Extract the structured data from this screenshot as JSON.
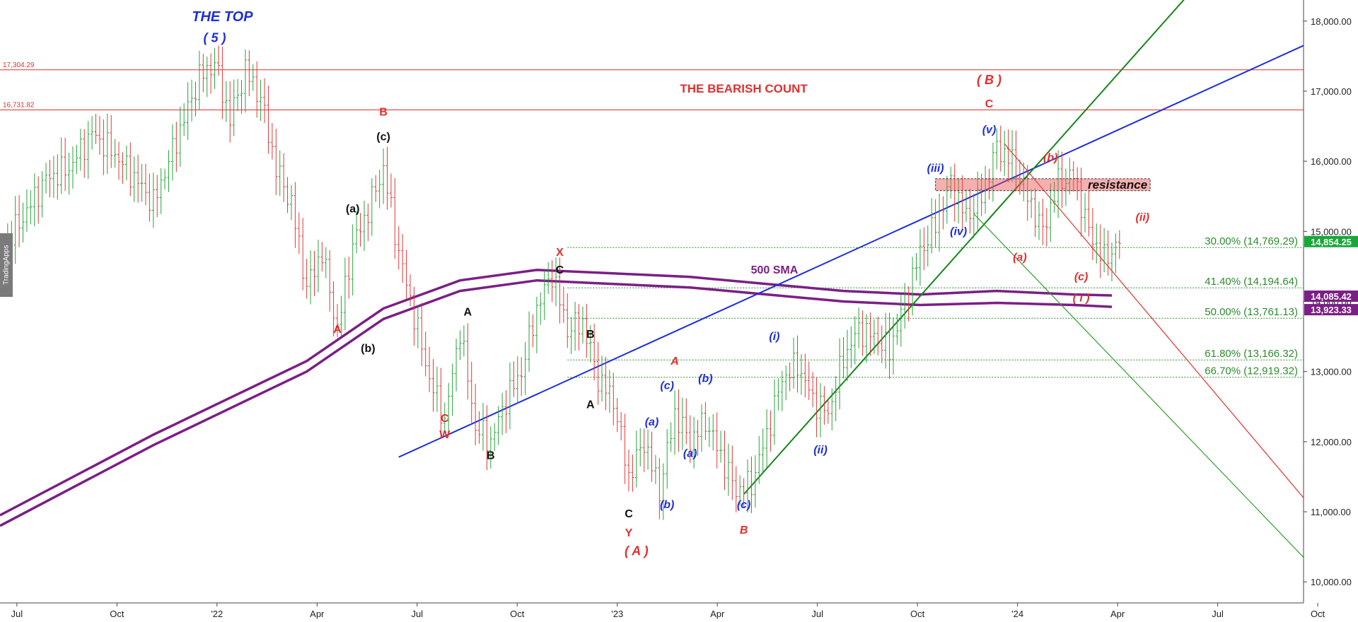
{
  "chart_data": {
    "type": "candlestick",
    "x_axis": {
      "range": [
        "2021-06",
        "2024-12"
      ],
      "tick_labels": [
        "Jul",
        "Oct",
        "'22",
        "Apr",
        "Jul",
        "Oct",
        "'23",
        "Apr",
        "Jul",
        "Oct",
        "'24",
        "Apr",
        "Jul",
        "Oct"
      ]
    },
    "y_axis": {
      "range": [
        9700,
        18300
      ],
      "position": "right",
      "tick_values": [
        10000,
        11000,
        12000,
        13000,
        14000,
        15000,
        16000,
        17000,
        18000
      ],
      "tick_labels": [
        "10,000.00",
        "11,000.00",
        "12,000.00",
        "13,000.00",
        "14,000.00",
        "15,000.00",
        "16,000.00",
        "17,000.00",
        "18,000.00"
      ]
    },
    "price_path": [
      [
        0,
        14700
      ],
      [
        3,
        15200
      ],
      [
        6,
        15750
      ],
      [
        9,
        15900
      ],
      [
        12,
        16400
      ],
      [
        15,
        16100
      ],
      [
        18,
        15700
      ],
      [
        20,
        15400
      ],
      [
        22,
        16000
      ],
      [
        24,
        16600
      ],
      [
        26,
        17200
      ],
      [
        28,
        17400
      ],
      [
        30,
        16600
      ],
      [
        32,
        17300
      ],
      [
        34,
        16900
      ],
      [
        36,
        15900
      ],
      [
        38,
        15400
      ],
      [
        40,
        14200
      ],
      [
        42,
        14700
      ],
      [
        44,
        13600
      ],
      [
        46,
        14800
      ],
      [
        48,
        15300
      ],
      [
        50,
        15900
      ],
      [
        52,
        14700
      ],
      [
        54,
        13800
      ],
      [
        56,
        12900
      ],
      [
        58,
        12300
      ],
      [
        60,
        13600
      ],
      [
        62,
        12200
      ],
      [
        64,
        12000
      ],
      [
        66,
        12600
      ],
      [
        68,
        13000
      ],
      [
        70,
        13900
      ],
      [
        72,
        14400
      ],
      [
        74,
        13600
      ],
      [
        76,
        13700
      ],
      [
        78,
        12900
      ],
      [
        80,
        12600
      ],
      [
        82,
        11500
      ],
      [
        84,
        12000
      ],
      [
        86,
        11300
      ],
      [
        88,
        12400
      ],
      [
        90,
        12000
      ],
      [
        92,
        12300
      ],
      [
        94,
        11800
      ],
      [
        96,
        11300
      ],
      [
        98,
        11400
      ],
      [
        100,
        12100
      ],
      [
        102,
        12900
      ],
      [
        104,
        13100
      ],
      [
        106,
        12600
      ],
      [
        108,
        12400
      ],
      [
        110,
        13200
      ],
      [
        112,
        13600
      ],
      [
        114,
        13500
      ],
      [
        116,
        13300
      ],
      [
        118,
        14000
      ],
      [
        120,
        14700
      ],
      [
        122,
        15100
      ],
      [
        124,
        15700
      ],
      [
        126,
        15200
      ],
      [
        128,
        15500
      ],
      [
        130,
        16200
      ],
      [
        132,
        16000
      ],
      [
        134,
        15500
      ],
      [
        136,
        15000
      ],
      [
        138,
        15700
      ],
      [
        140,
        15800
      ],
      [
        142,
        15000
      ],
      [
        144,
        14600
      ],
      [
        146,
        14850
      ]
    ],
    "sma": {
      "label": "500 SMA",
      "color": "#7b1f86",
      "upper": [
        [
          0,
          10950
        ],
        [
          20,
          12100
        ],
        [
          40,
          13150
        ],
        [
          50,
          13900
        ],
        [
          60,
          14300
        ],
        [
          70,
          14450
        ],
        [
          80,
          14400
        ],
        [
          90,
          14350
        ],
        [
          100,
          14250
        ],
        [
          110,
          14150
        ],
        [
          120,
          14100
        ],
        [
          130,
          14150
        ],
        [
          140,
          14100
        ],
        [
          145,
          14085.42
        ]
      ],
      "lower": [
        [
          0,
          10800
        ],
        [
          20,
          11950
        ],
        [
          40,
          13000
        ],
        [
          50,
          13750
        ],
        [
          60,
          14150
        ],
        [
          70,
          14300
        ],
        [
          80,
          14250
        ],
        [
          90,
          14200
        ],
        [
          100,
          14100
        ],
        [
          110,
          14000
        ],
        [
          120,
          13950
        ],
        [
          130,
          13980
        ],
        [
          140,
          13950
        ],
        [
          145,
          13923.33
        ]
      ]
    },
    "horizontal_levels": [
      {
        "value": 17304.29,
        "label": "17,304.29",
        "color": "#e03030"
      },
      {
        "value": 16731.82,
        "label": "16,731.82",
        "color": "#e03030"
      }
    ],
    "fib_levels": [
      {
        "value": 14769.29,
        "label": "30.00% (14,769.29)"
      },
      {
        "value": 14194.64,
        "label": "41.40% (14,194.64)"
      },
      {
        "value": 13761.13,
        "label": "50.00% (13,761.13)"
      },
      {
        "value": 13166.32,
        "label": "61.80% (13,166.32)"
      },
      {
        "value": 12919.32,
        "label": "66.70% (12,919.32)"
      }
    ],
    "trendlines": [
      {
        "name": "blue",
        "color": "#1f2fd6",
        "from": [
          52,
          11780
        ],
        "to": [
          170,
          17650
        ]
      },
      {
        "name": "green",
        "color": "#14861a",
        "from": [
          97,
          11250
        ],
        "to": [
          156,
          18500
        ]
      },
      {
        "name": "red",
        "color": "#e03030",
        "from": [
          131,
          16250
        ],
        "to": [
          170,
          11200
        ]
      },
      {
        "name": "green-thin",
        "color": "#2e9e2e",
        "from": [
          127,
          15250
        ],
        "to": [
          170,
          10350
        ]
      }
    ],
    "resistance_zone": {
      "label": "resistance",
      "top": 15750,
      "bottom": 15580,
      "start": 122,
      "end": 150
    },
    "price_badges": [
      {
        "value": "14,854.25",
        "color": "#18a838"
      },
      {
        "value": "14,085.42",
        "color": "#7b1f86"
      },
      {
        "value": "13,923.33",
        "color": "#7b1f86"
      }
    ],
    "annotations": [
      {
        "text": "THE TOP",
        "x": 29,
        "y": 18000,
        "color": "#1f2fd6",
        "italic": true,
        "size": 20
      },
      {
        "text": "( 5 )",
        "x": 28,
        "y": 17700,
        "color": "#1f2fd6",
        "italic": true,
        "size": 18
      },
      {
        "text": "THE BEARISH COUNT",
        "x": 97,
        "y": 16980,
        "color": "#e03030",
        "italic": false,
        "size": 17
      },
      {
        "text": "B",
        "x": 50,
        "y": 16650,
        "color": "#e03030",
        "italic": false,
        "size": 16
      },
      {
        "text": "(c)",
        "x": 50,
        "y": 16300,
        "color": "#111111",
        "italic": false,
        "size": 16
      },
      {
        "text": "(a)",
        "x": 46,
        "y": 15270,
        "color": "#111111",
        "italic": false,
        "size": 16
      },
      {
        "text": "A",
        "x": 44,
        "y": 13550,
        "color": "#e03030",
        "italic": false,
        "size": 16
      },
      {
        "text": "(b)",
        "x": 48,
        "y": 13280,
        "color": "#111111",
        "italic": false,
        "size": 16
      },
      {
        "text": "C",
        "x": 58,
        "y": 12280,
        "color": "#e03030",
        "italic": false,
        "size": 16
      },
      {
        "text": "W",
        "x": 58,
        "y": 12050,
        "color": "#e03030",
        "italic": false,
        "size": 16
      },
      {
        "text": "B",
        "x": 64,
        "y": 11750,
        "color": "#111111",
        "italic": false,
        "size": 16
      },
      {
        "text": "A",
        "x": 61,
        "y": 13800,
        "color": "#111111",
        "italic": false,
        "size": 16
      },
      {
        "text": "X",
        "x": 73,
        "y": 14650,
        "color": "#e03030",
        "italic": false,
        "size": 16
      },
      {
        "text": "C",
        "x": 73,
        "y": 14400,
        "color": "#111111",
        "italic": false,
        "size": 16
      },
      {
        "text": "500 SMA",
        "x": 101,
        "y": 14400,
        "color": "#7b1f86",
        "italic": false,
        "size": 16
      },
      {
        "text": "B",
        "x": 77,
        "y": 13480,
        "color": "#111111",
        "italic": false,
        "size": 16
      },
      {
        "text": "A",
        "x": 77,
        "y": 12480,
        "color": "#111111",
        "italic": false,
        "size": 16
      },
      {
        "text": "A",
        "x": 88,
        "y": 13100,
        "color": "#e03030",
        "italic": true,
        "size": 16
      },
      {
        "text": "(c)",
        "x": 87,
        "y": 12750,
        "color": "#1f2fd6",
        "italic": true,
        "size": 16
      },
      {
        "text": "(b)",
        "x": 92,
        "y": 12850,
        "color": "#1f2fd6",
        "italic": true,
        "size": 16
      },
      {
        "text": "(a)",
        "x": 85,
        "y": 12230,
        "color": "#1f2fd6",
        "italic": true,
        "size": 16
      },
      {
        "text": "(a)",
        "x": 90,
        "y": 11780,
        "color": "#1f2fd6",
        "italic": true,
        "size": 16
      },
      {
        "text": "(b)",
        "x": 87,
        "y": 11050,
        "color": "#1f2fd6",
        "italic": true,
        "size": 16
      },
      {
        "text": "C",
        "x": 82,
        "y": 10920,
        "color": "#111111",
        "italic": false,
        "size": 16
      },
      {
        "text": "Y",
        "x": 82,
        "y": 10650,
        "color": "#e03030",
        "italic": false,
        "size": 16
      },
      {
        "text": "( A )",
        "x": 83,
        "y": 10380,
        "color": "#e03030",
        "italic": true,
        "size": 18
      },
      {
        "text": "(c)",
        "x": 97,
        "y": 11050,
        "color": "#1f2fd6",
        "italic": true,
        "size": 16
      },
      {
        "text": "B",
        "x": 97,
        "y": 10690,
        "color": "#e03030",
        "italic": true,
        "size": 16
      },
      {
        "text": "(i)",
        "x": 101,
        "y": 13450,
        "color": "#1f2fd6",
        "italic": true,
        "size": 16
      },
      {
        "text": "(ii)",
        "x": 107,
        "y": 11830,
        "color": "#1f2fd6",
        "italic": true,
        "size": 16
      },
      {
        "text": "(iii)",
        "x": 122,
        "y": 15850,
        "color": "#1f2fd6",
        "italic": true,
        "size": 16
      },
      {
        "text": "(iv)",
        "x": 125,
        "y": 14950,
        "color": "#1f2fd6",
        "italic": true,
        "size": 16
      },
      {
        "text": "(v)",
        "x": 129,
        "y": 16400,
        "color": "#1f2fd6",
        "italic": true,
        "size": 16
      },
      {
        "text": "( B )",
        "x": 129,
        "y": 17100,
        "color": "#e03030",
        "italic": true,
        "size": 18
      },
      {
        "text": "C",
        "x": 129,
        "y": 16770,
        "color": "#e03030",
        "italic": false,
        "size": 16
      },
      {
        "text": "(b)",
        "x": 137,
        "y": 16000,
        "color": "#e03030",
        "italic": true,
        "size": 16
      },
      {
        "text": "(ii)",
        "x": 149,
        "y": 15150,
        "color": "#e03030",
        "italic": true,
        "size": 16
      },
      {
        "text": "(a)",
        "x": 133,
        "y": 14580,
        "color": "#e03030",
        "italic": true,
        "size": 16
      },
      {
        "text": "(c)",
        "x": 141,
        "y": 14300,
        "color": "#e03030",
        "italic": true,
        "size": 16
      },
      {
        "text": "( i )",
        "x": 141,
        "y": 14000,
        "color": "#e03030",
        "italic": true,
        "size": 16
      }
    ],
    "grid": false,
    "legend": "none"
  },
  "watermark": "TradingApps"
}
